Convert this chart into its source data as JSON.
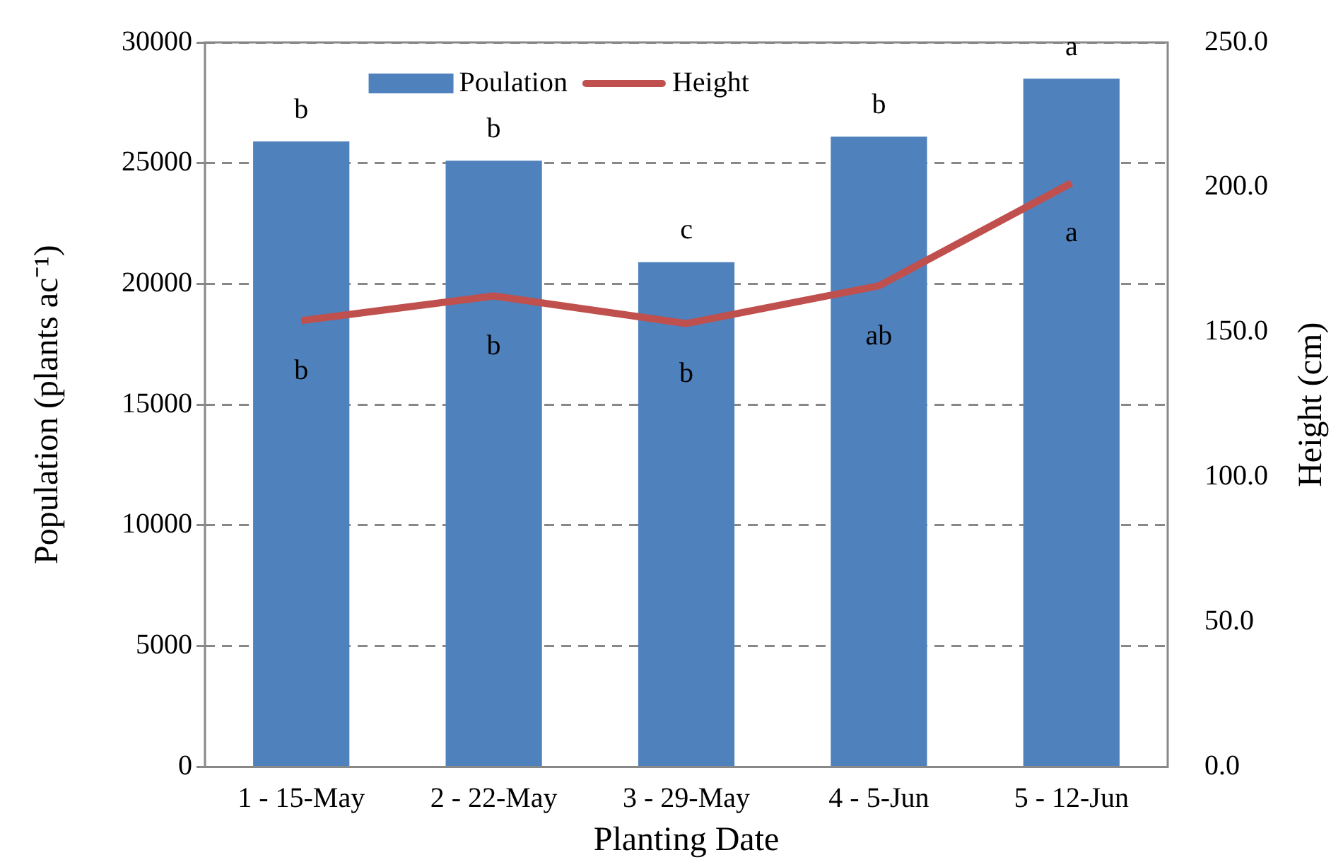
{
  "chart_data": {
    "type": "bar",
    "xlabel": "Planting Date",
    "ylabel": "Population (plants ac⁻¹)",
    "y2label": "Height (cm)",
    "categories": [
      "1 - 15-May",
      "2 - 22-May",
      "3 - 29-May",
      "4 - 5-Jun",
      "5 - 12-Jun"
    ],
    "series": [
      {
        "name": "Poulation",
        "color": "#4f81bd",
        "values": [
          25900,
          25100,
          20900,
          26100,
          28500
        ]
      },
      {
        "name": "Height",
        "type": "line",
        "axis": "y2",
        "color": "#c0504d",
        "values": [
          154,
          162.5,
          153,
          166,
          201.5
        ]
      }
    ],
    "ylim": [
      0,
      30000
    ],
    "yticks": [
      0,
      5000,
      10000,
      15000,
      20000,
      25000,
      30000
    ],
    "y2lim": [
      0,
      250
    ],
    "y2ticks": [
      {
        "value": 0,
        "label": "0.0"
      },
      {
        "value": 50,
        "label": "50.0"
      },
      {
        "value": 100,
        "label": "100.0"
      },
      {
        "value": 150,
        "label": "150.0"
      },
      {
        "value": 200,
        "label": "200.0"
      },
      {
        "value": 250,
        "label": "250.0"
      }
    ],
    "annotations": [
      "b",
      "b",
      "c",
      "b",
      "a",
      "b",
      "b",
      "b",
      "ab",
      "a"
    ],
    "grid": "y",
    "legend": "top",
    "marker": "none",
    "line_style": "solid"
  }
}
